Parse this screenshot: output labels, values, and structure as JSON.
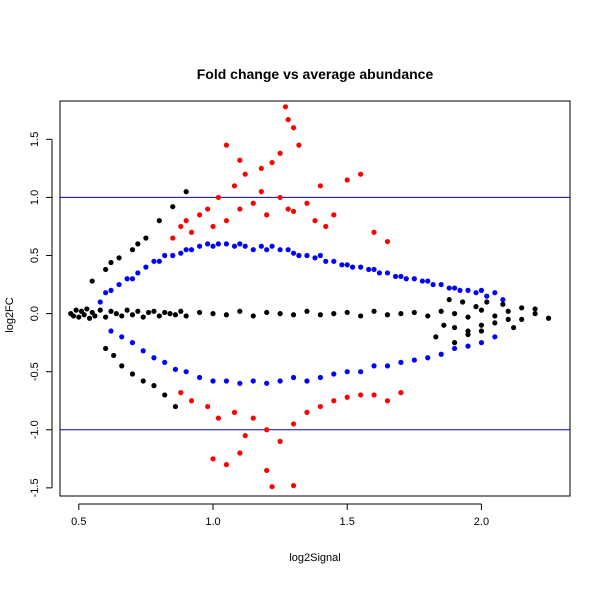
{
  "chart_data": {
    "type": "scatter",
    "title": "Fold change vs average abundance",
    "xlabel": "log2Signal",
    "ylabel": "log2FC",
    "xlim": [
      0.43,
      2.33
    ],
    "ylim": [
      -1.57,
      1.83
    ],
    "x_ticks": [
      0.5,
      1.0,
      1.5,
      2.0
    ],
    "x_tick_labels": [
      "0.5",
      "1.0",
      "1.5",
      "2.0"
    ],
    "y_ticks": [
      -1.5,
      -1.0,
      -0.5,
      0.0,
      0.5,
      1.0,
      1.5
    ],
    "y_tick_labels": [
      "-1.5",
      "-1.0",
      "-0.5",
      "0.0",
      "0.5",
      "1.0",
      "1.5"
    ],
    "reference_lines": [
      {
        "axis": "y",
        "value": 1.0,
        "color": "#0000cc"
      },
      {
        "axis": "y",
        "value": -1.0,
        "color": "#0000cc"
      }
    ],
    "grid": false,
    "legend": "none",
    "series": [
      {
        "color": "#000000",
        "x": [
          0.47,
          0.48,
          0.49,
          0.5,
          0.51,
          0.52,
          0.53,
          0.54,
          0.55,
          0.56,
          0.58,
          0.6,
          0.62,
          0.64,
          0.66,
          0.68,
          0.7,
          0.72,
          0.74,
          0.76,
          0.78,
          0.8,
          0.82,
          0.84,
          0.86,
          0.88,
          0.9,
          0.95,
          1.0,
          1.05,
          1.1,
          1.15,
          1.2,
          1.25,
          1.3,
          1.35,
          1.4,
          1.45,
          1.5,
          1.55,
          1.6,
          1.65,
          1.7,
          1.75,
          1.8,
          1.85,
          1.9,
          1.95,
          2.0,
          2.05,
          2.1,
          2.15,
          2.2,
          2.25,
          0.55,
          0.6,
          0.62,
          0.65,
          0.7,
          0.72,
          0.75,
          0.8,
          0.85,
          0.9,
          0.6,
          0.63,
          0.66,
          0.7,
          0.74,
          0.78,
          0.82,
          0.86,
          1.86,
          1.9,
          1.95,
          2.0,
          2.05,
          2.1,
          2.12,
          2.15,
          2.2,
          1.88,
          1.93,
          1.98,
          2.02,
          2.08,
          1.83,
          1.9,
          1.95,
          2.0
        ],
        "y": [
          0.0,
          -0.02,
          0.03,
          -0.03,
          0.02,
          -0.01,
          0.04,
          -0.04,
          0.01,
          -0.02,
          0.03,
          -0.03,
          0.02,
          0.0,
          -0.02,
          0.03,
          -0.01,
          0.02,
          -0.03,
          0.01,
          0.02,
          -0.02,
          0.01,
          0.0,
          -0.01,
          0.02,
          -0.02,
          0.01,
          0.0,
          -0.01,
          0.02,
          -0.02,
          0.01,
          0.0,
          -0.01,
          0.02,
          -0.01,
          0.0,
          0.01,
          -0.02,
          0.02,
          -0.01,
          0.0,
          0.01,
          -0.02,
          0.02,
          0.0,
          -0.03,
          0.03,
          -0.02,
          0.02,
          -0.05,
          0.0,
          -0.04,
          0.28,
          0.38,
          0.44,
          0.48,
          0.55,
          0.6,
          0.65,
          0.8,
          0.92,
          1.05,
          -0.3,
          -0.36,
          -0.45,
          -0.52,
          -0.58,
          -0.62,
          -0.7,
          -0.8,
          -0.1,
          -0.12,
          -0.15,
          -0.1,
          -0.08,
          -0.05,
          -0.12,
          0.05,
          0.04,
          0.12,
          0.1,
          0.06,
          0.1,
          0.08,
          -0.2,
          -0.25,
          -0.18,
          -0.15
        ]
      },
      {
        "color": "#0000ff",
        "x": [
          0.58,
          0.6,
          0.62,
          0.65,
          0.68,
          0.7,
          0.72,
          0.75,
          0.78,
          0.8,
          0.82,
          0.85,
          0.88,
          0.9,
          0.92,
          0.95,
          0.98,
          1.0,
          1.02,
          1.05,
          1.08,
          1.1,
          1.12,
          1.15,
          1.18,
          1.2,
          1.22,
          1.25,
          1.28,
          1.3,
          1.32,
          1.35,
          1.38,
          1.4,
          1.42,
          1.45,
          1.48,
          1.5,
          1.52,
          1.55,
          1.58,
          1.6,
          1.62,
          1.65,
          1.68,
          1.7,
          1.72,
          1.75,
          1.78,
          1.8,
          1.82,
          1.85,
          1.88,
          1.9,
          1.92,
          1.95,
          1.98,
          2.0,
          2.02,
          2.05,
          2.08,
          0.62,
          0.66,
          0.7,
          0.74,
          0.78,
          0.82,
          0.86,
          0.9,
          0.95,
          1.0,
          1.05,
          1.1,
          1.15,
          1.2,
          1.25,
          1.3,
          1.35,
          1.4,
          1.45,
          1.5,
          1.55,
          1.6,
          1.65,
          1.7,
          1.75,
          1.8,
          1.85,
          1.9,
          1.95,
          2.0,
          2.05
        ],
        "y": [
          0.1,
          0.18,
          0.2,
          0.25,
          0.3,
          0.3,
          0.35,
          0.4,
          0.45,
          0.45,
          0.5,
          0.5,
          0.52,
          0.55,
          0.55,
          0.58,
          0.6,
          0.58,
          0.6,
          0.6,
          0.58,
          0.6,
          0.58,
          0.55,
          0.58,
          0.55,
          0.58,
          0.55,
          0.55,
          0.52,
          0.5,
          0.5,
          0.48,
          0.5,
          0.45,
          0.45,
          0.42,
          0.42,
          0.4,
          0.4,
          0.38,
          0.38,
          0.35,
          0.35,
          0.32,
          0.32,
          0.3,
          0.3,
          0.28,
          0.28,
          0.25,
          0.25,
          0.22,
          0.22,
          0.2,
          0.2,
          0.18,
          0.2,
          0.15,
          0.18,
          0.12,
          -0.15,
          -0.2,
          -0.25,
          -0.32,
          -0.38,
          -0.42,
          -0.48,
          -0.5,
          -0.55,
          -0.58,
          -0.58,
          -0.6,
          -0.58,
          -0.6,
          -0.58,
          -0.55,
          -0.58,
          -0.55,
          -0.52,
          -0.5,
          -0.5,
          -0.45,
          -0.45,
          -0.42,
          -0.4,
          -0.38,
          -0.35,
          -0.3,
          -0.28,
          -0.25,
          -0.2
        ]
      },
      {
        "color": "#ff0000",
        "x": [
          0.85,
          0.88,
          0.9,
          0.92,
          0.95,
          0.98,
          1.0,
          1.02,
          1.05,
          1.08,
          1.1,
          1.12,
          1.15,
          1.18,
          1.2,
          1.22,
          1.25,
          1.28,
          1.3,
          1.32,
          1.35,
          1.38,
          1.4,
          1.42,
          1.45,
          1.5,
          1.55,
          1.6,
          1.65,
          1.27,
          1.28,
          1.25,
          1.3,
          1.05,
          1.1,
          1.18,
          0.88,
          0.92,
          0.98,
          1.02,
          1.08,
          1.12,
          1.15,
          1.2,
          1.25,
          1.3,
          1.35,
          1.4,
          1.45,
          1.5,
          1.55,
          1.6,
          1.65,
          1.7,
          1.22,
          1.3,
          1.0,
          1.05,
          1.1,
          1.2
        ],
        "y": [
          0.65,
          0.75,
          0.8,
          0.7,
          0.85,
          0.9,
          0.75,
          1.0,
          0.8,
          1.1,
          0.9,
          1.2,
          0.95,
          1.05,
          0.85,
          1.3,
          1.0,
          0.9,
          1.6,
          1.45,
          0.95,
          0.8,
          1.1,
          0.75,
          0.85,
          1.15,
          1.2,
          0.7,
          0.62,
          1.78,
          1.67,
          1.38,
          0.88,
          1.45,
          1.32,
          1.25,
          -0.68,
          -0.75,
          -0.8,
          -0.9,
          -0.85,
          -1.05,
          -0.9,
          -1.0,
          -1.1,
          -0.95,
          -0.85,
          -0.8,
          -0.75,
          -0.72,
          -0.7,
          -0.7,
          -0.75,
          -0.68,
          -1.49,
          -1.48,
          -1.25,
          -1.3,
          -1.2,
          -1.35
        ]
      }
    ]
  }
}
